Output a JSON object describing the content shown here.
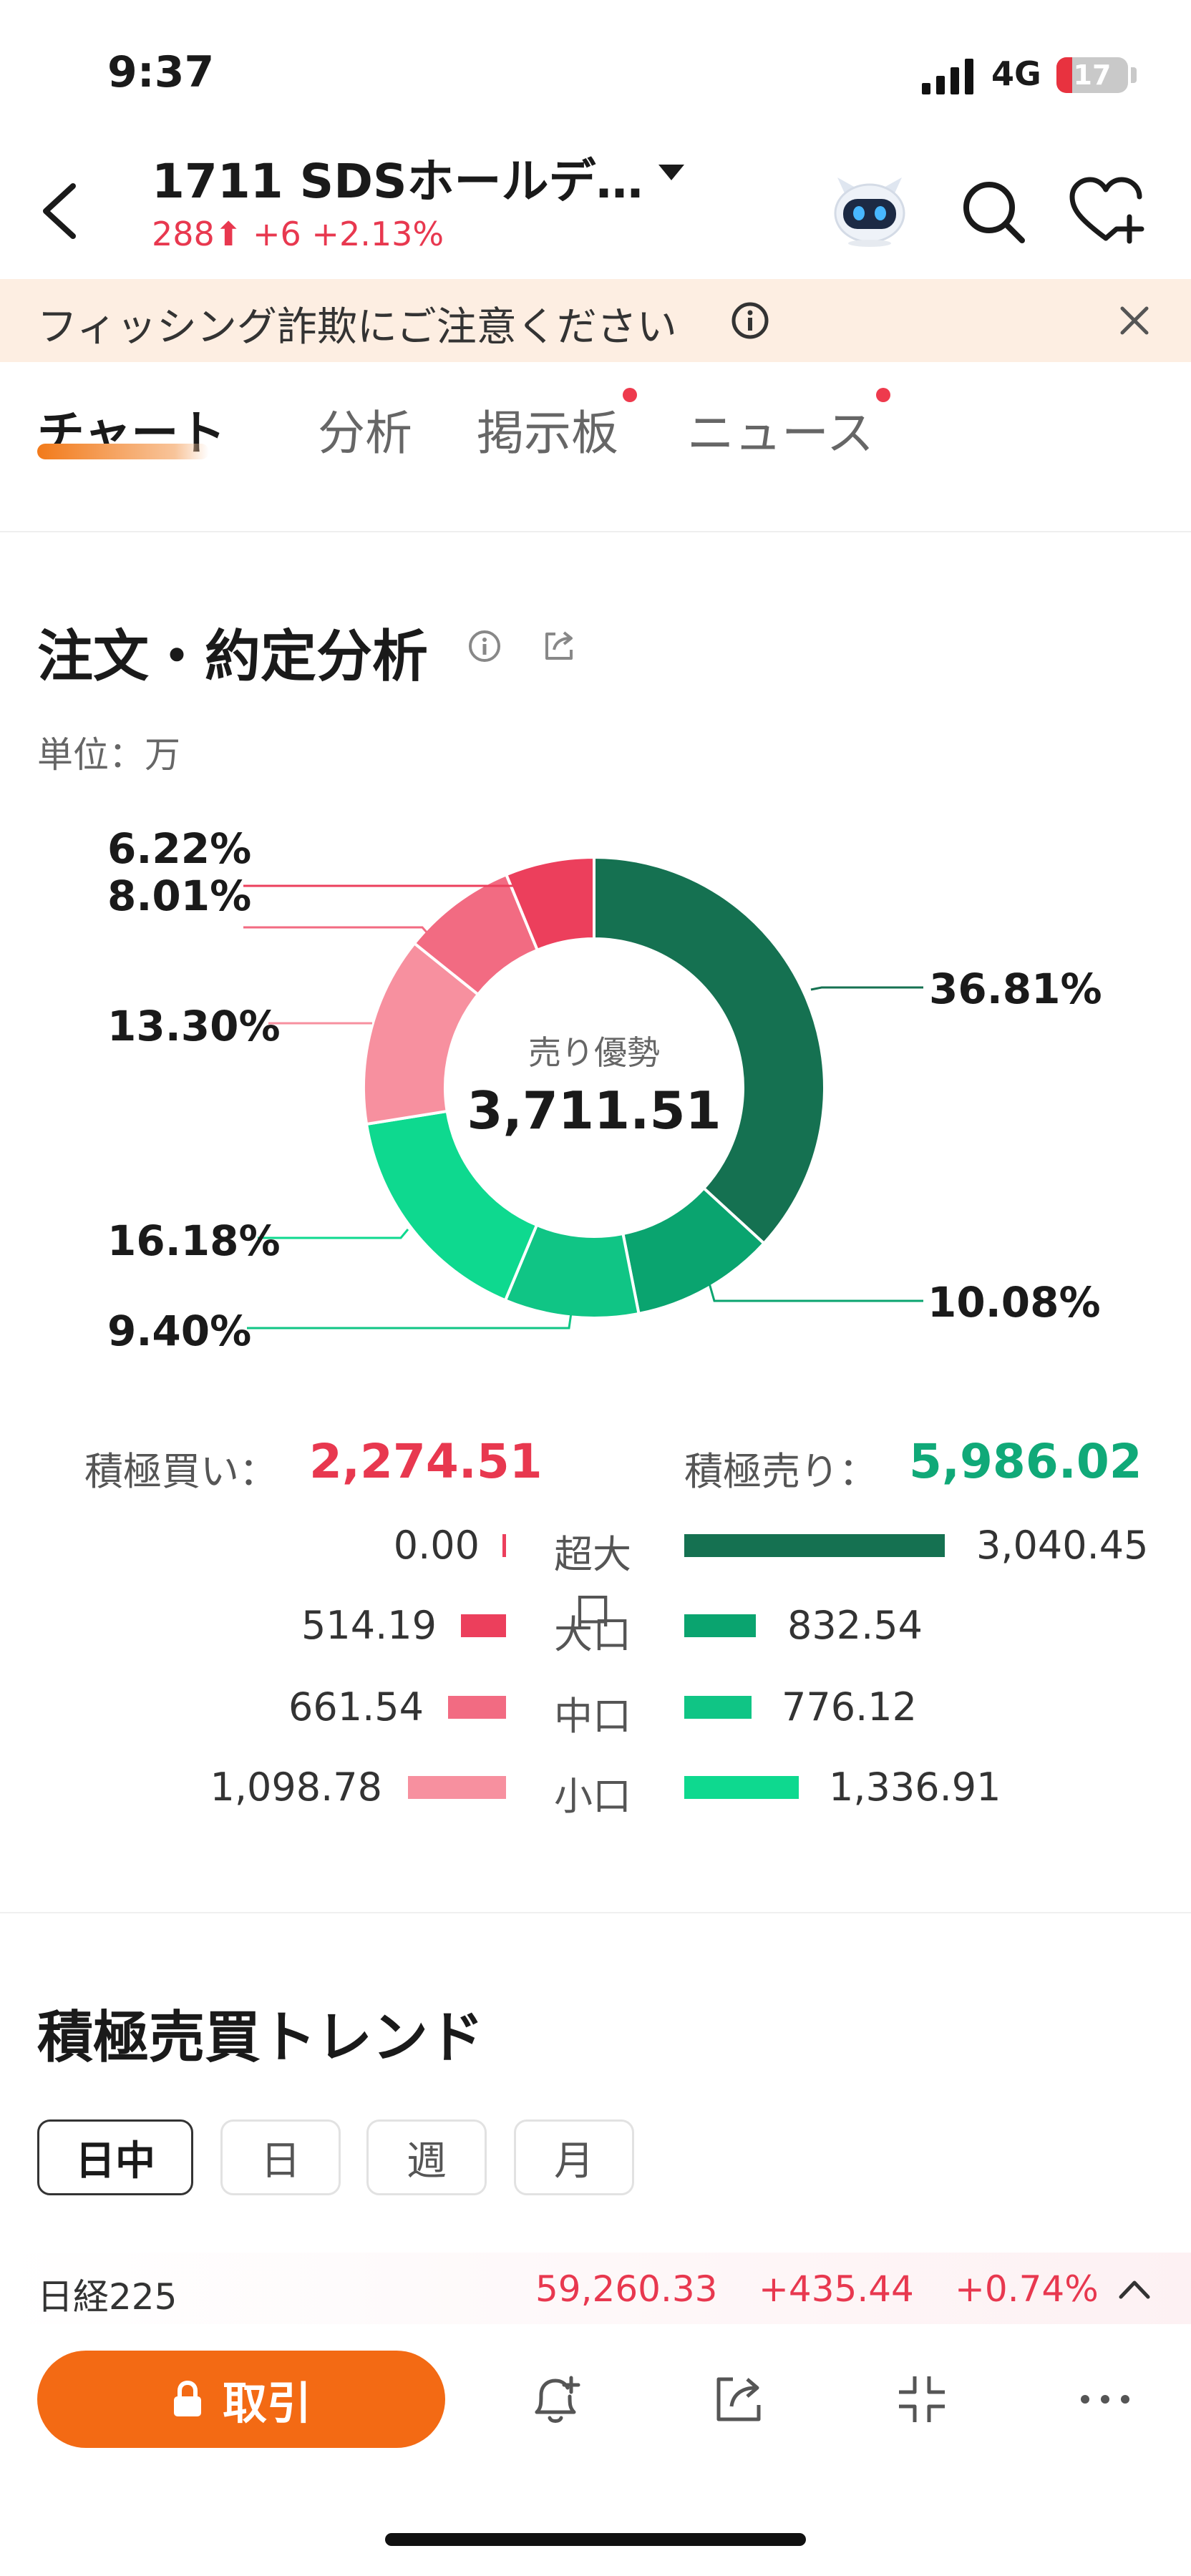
{
  "status": {
    "time": "9:37",
    "network": "4G",
    "battery": "17"
  },
  "header": {
    "title": "1711  SDSホールデ…",
    "price": "288",
    "change": "+6",
    "change_pct": "+2.13%"
  },
  "banner": {
    "text": "フィッシング詐欺にご注意ください"
  },
  "tabs": [
    {
      "label": "チャート"
    },
    {
      "label": "分析"
    },
    {
      "label": "掲示板"
    },
    {
      "label": "ニュース"
    }
  ],
  "order_analysis": {
    "title": "注文・約定分析",
    "unit": "単位：万",
    "center_label": "売り優勢",
    "center_value": "3,711.51",
    "pct_labels": [
      "36.81%",
      "10.08%",
      "9.40%",
      "16.18%",
      "13.30%",
      "8.01%",
      "6.22%"
    ],
    "buy_label": "積極買い：",
    "buy_total": "2,274.51",
    "sell_label": "積極売り：",
    "sell_total": "5,986.02",
    "rows": [
      {
        "category": "超大口",
        "buy": "0.00",
        "sell": "3,040.45"
      },
      {
        "category": "大口",
        "buy": "514.19",
        "sell": "832.54"
      },
      {
        "category": "中口",
        "buy": "661.54",
        "sell": "776.12"
      },
      {
        "category": "小口",
        "buy": "1,098.78",
        "sell": "1,336.91"
      }
    ]
  },
  "chart_data": {
    "type": "pie",
    "categories": [
      "超大口 売り",
      "大口 売り",
      "中口 売り",
      "小口 売り",
      "小口 買い",
      "中口 買い",
      "大口 買い"
    ],
    "values": [
      36.81,
      10.08,
      9.4,
      16.18,
      13.3,
      8.01,
      6.22
    ],
    "colors": [
      "#157151",
      "#0aa46f",
      "#10c585",
      "#0ed98f",
      "#f7909f",
      "#f26b82",
      "#ec3f5c"
    ],
    "title": "注文・約定分析"
  },
  "trend": {
    "title": "積極売買トレンド",
    "periods": [
      "日中",
      "日",
      "週",
      "月"
    ]
  },
  "ticker": {
    "name": "日経225",
    "value": "59,260.33",
    "change": "+435.44",
    "change_pct": "+0.74%"
  },
  "bottom_bar": {
    "trade_label": "取引"
  },
  "colors": {
    "up": "#e8384f",
    "down": "#10a978",
    "accent": "#f36a14"
  }
}
